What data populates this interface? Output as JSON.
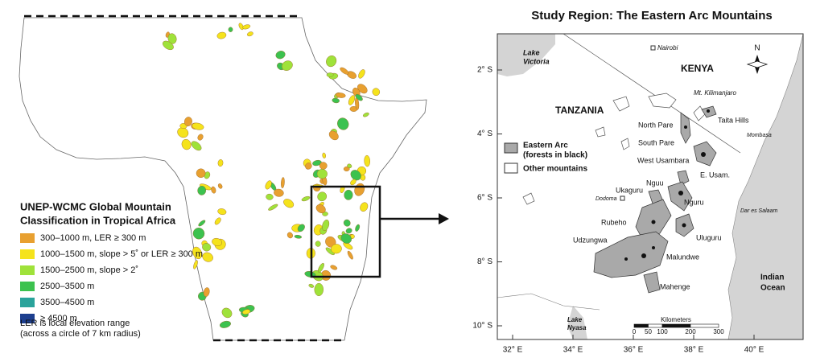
{
  "left_map": {
    "legend": {
      "title": [
        "UNEP-WCMC Global Mountain",
        "Classification in Tropical Africa"
      ],
      "items": [
        {
          "label": "300–1000 m, LER ≥ 300 m",
          "color": "#e8a030"
        },
        {
          "label": "1000–1500 m, slope > 5˚ or LER ≥ 300 m",
          "color": "#f5e31c"
        },
        {
          "label": "1500–2500 m, slope > 2˚",
          "color": "#9fe23a"
        },
        {
          "label": "2500–3500 m",
          "color": "#3cc24f"
        },
        {
          "label": "3500–4500 m",
          "color": "#2aa39b"
        },
        {
          "label": "≥ 4500 m",
          "color": "#1d3f8f"
        }
      ],
      "note": [
        "LER is local elevation range",
        "(across a circle of 7 km radius)"
      ]
    }
  },
  "right_map": {
    "title": "Study Region: The Eastern Arc Mountains",
    "latitude_labels": [
      "2° S",
      "4° S",
      "6° S",
      "8° S",
      "10° S"
    ],
    "longitude_labels": [
      "32° E",
      "34° E",
      "36° E",
      "38° E",
      "40° E"
    ],
    "place_labels": [
      "Nairobi",
      "Lake",
      "Victoria",
      "KENYA",
      "TANZANIA",
      "Mt. Kilimanjaro",
      "Taita Hills",
      "North Pare",
      "South Pare",
      "West Usambara",
      "E. Usam.",
      "Mombasa",
      "Ukaguru",
      "Nguu",
      "Dodoma",
      "Nguru",
      "Rubeho",
      "Uluguru",
      "Dar es Salaam",
      "Udzungwa",
      "Malundwe",
      "Mahenge",
      "Indian",
      "Ocean",
      "Lake",
      "Nyasa"
    ],
    "north": "N",
    "legend": [
      [
        "Eastern Arc",
        "(forests in black)"
      ],
      [
        "Other mountains"
      ]
    ],
    "scale": {
      "title": "Kilometers",
      "ticks": [
        0,
        50,
        100,
        200,
        300
      ]
    }
  }
}
